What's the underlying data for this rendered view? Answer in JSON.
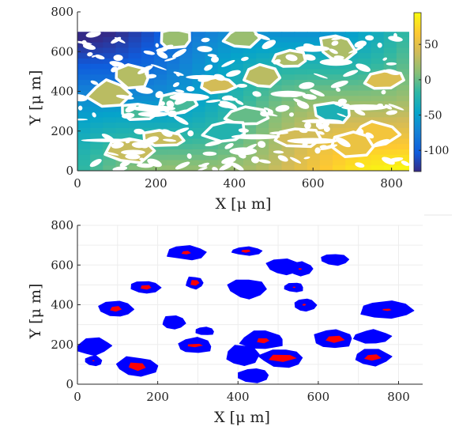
{
  "chart_data": [
    {
      "type": "heatmap",
      "title": "",
      "xlabel": "X [μ m]",
      "ylabel": "Y [μ m]",
      "xlim": [
        0,
        845
      ],
      "ylim": [
        0,
        800
      ],
      "data_extent": {
        "x": [
          0,
          845
        ],
        "y": [
          0,
          700
        ]
      },
      "xticks": [
        0,
        200,
        400,
        600,
        800
      ],
      "yticks": [
        0,
        200,
        400,
        600,
        800
      ],
      "colorbar": {
        "range": [
          -130,
          95
        ],
        "ticks": [
          50,
          0,
          -50,
          -100
        ],
        "colormap": "parula"
      },
      "grid": false,
      "field_trend": "values increase roughly diagonally from about -120 at top-left to about 90 at bottom-right",
      "blank_regions": "white (no data) patches and irregular white spots throughout the field",
      "regions": [
        {
          "x": 250,
          "y": 665,
          "value": 18
        },
        {
          "x": 418,
          "y": 669,
          "value": 18
        },
        {
          "x": 540,
          "y": 560,
          "value": 25
        },
        {
          "x": 660,
          "y": 620,
          "value": 25
        },
        {
          "x": 470,
          "y": 475,
          "value": 30
        },
        {
          "x": 140,
          "y": 475,
          "value": 28
        },
        {
          "x": 780,
          "y": 460,
          "value": 45
        },
        {
          "x": 360,
          "y": 430,
          "value": 40
        },
        {
          "x": 80,
          "y": 385,
          "value": 30
        },
        {
          "x": 255,
          "y": 340,
          "value": -10
        },
        {
          "x": 650,
          "y": 290,
          "value": -30
        },
        {
          "x": 430,
          "y": 270,
          "value": 0
        },
        {
          "x": 160,
          "y": 300,
          "value": -10
        },
        {
          "x": 760,
          "y": 185,
          "value": 60
        },
        {
          "x": 700,
          "y": 130,
          "value": 55
        },
        {
          "x": 380,
          "y": 200,
          "value": -25
        },
        {
          "x": 560,
          "y": 165,
          "value": 40
        },
        {
          "x": 220,
          "y": 160,
          "value": 35
        },
        {
          "x": 130,
          "y": 105,
          "value": 35
        }
      ]
    },
    {
      "type": "scatter",
      "title": "",
      "xlabel": "X [μ m]",
      "ylabel": "Y [μ m]",
      "xlim": [
        0,
        860
      ],
      "ylim": [
        0,
        800
      ],
      "xticks": [
        0,
        200,
        400,
        600,
        800
      ],
      "yticks": [
        0,
        200,
        400,
        600,
        800
      ],
      "grid": true,
      "colors": {
        "grain": "#0000ff",
        "core": "#ff0000"
      },
      "grains": [
        {
          "cx": 270,
          "cy": 662,
          "rx": 47,
          "ry": 35,
          "core": [
            0.26,
            0.26
          ]
        },
        {
          "cx": 420,
          "cy": 670,
          "rx": 38,
          "ry": 21,
          "core": [
            0.36,
            0.42
          ]
        },
        {
          "cx": 515,
          "cy": 590,
          "rx": 45,
          "ry": 38,
          "core": null
        },
        {
          "cx": 555,
          "cy": 580,
          "rx": 32,
          "ry": 34,
          "core": [
            0.14,
            0.12
          ]
        },
        {
          "cx": 640,
          "cy": 628,
          "rx": 38,
          "ry": 30,
          "core": null
        },
        {
          "cx": 292,
          "cy": 510,
          "rx": 23,
          "ry": 32,
          "core": [
            0.5,
            0.52
          ]
        },
        {
          "cx": 425,
          "cy": 480,
          "rx": 52,
          "ry": 52,
          "core": null
        },
        {
          "cx": 540,
          "cy": 488,
          "rx": 25,
          "ry": 25,
          "core": [
            0.16,
            0.16
          ]
        },
        {
          "cx": 565,
          "cy": 400,
          "rx": 28,
          "ry": 34,
          "core": [
            0.18,
            0.15
          ]
        },
        {
          "cx": 170,
          "cy": 488,
          "rx": 36,
          "ry": 32,
          "core": [
            0.42,
            0.44
          ]
        },
        {
          "cx": 95,
          "cy": 380,
          "rx": 44,
          "ry": 42,
          "core": [
            0.36,
            0.32
          ]
        },
        {
          "cx": 770,
          "cy": 375,
          "rx": 68,
          "ry": 48,
          "core": [
            0.18,
            0.14
          ]
        },
        {
          "cx": 240,
          "cy": 310,
          "rx": 31,
          "ry": 36,
          "core": null
        },
        {
          "cx": 318,
          "cy": 267,
          "rx": 23,
          "ry": 21,
          "core": null
        },
        {
          "cx": 293,
          "cy": 195,
          "rx": 44,
          "ry": 42,
          "core": [
            0.5,
            0.2
          ]
        },
        {
          "cx": 462,
          "cy": 220,
          "rx": 56,
          "ry": 48,
          "core": [
            0.3,
            0.3
          ]
        },
        {
          "cx": 640,
          "cy": 225,
          "rx": 52,
          "ry": 48,
          "core": [
            0.5,
            0.4
          ]
        },
        {
          "cx": 735,
          "cy": 237,
          "rx": 44,
          "ry": 37,
          "core": null
        },
        {
          "cx": 735,
          "cy": 135,
          "rx": 46,
          "ry": 40,
          "core": [
            0.45,
            0.4
          ]
        },
        {
          "cx": 40,
          "cy": 190,
          "rx": 45,
          "ry": 42,
          "core": null
        },
        {
          "cx": 40,
          "cy": 118,
          "rx": 21,
          "ry": 24,
          "core": [
            0.15,
            0.14
          ]
        },
        {
          "cx": 148,
          "cy": 90,
          "rx": 55,
          "ry": 48,
          "core": [
            0.45,
            0.45
          ]
        },
        {
          "cx": 412,
          "cy": 148,
          "rx": 45,
          "ry": 52,
          "core": null
        },
        {
          "cx": 510,
          "cy": 132,
          "rx": 57,
          "ry": 48,
          "core": [
            0.6,
            0.45
          ]
        },
        {
          "cx": 440,
          "cy": 45,
          "rx": 42,
          "ry": 38,
          "core": null
        }
      ]
    }
  ]
}
